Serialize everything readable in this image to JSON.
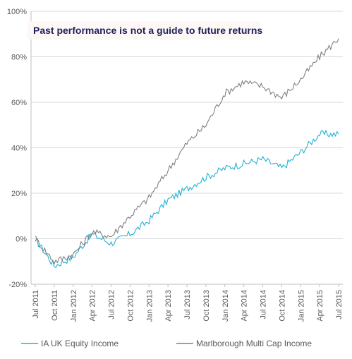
{
  "chart_data": {
    "type": "line",
    "banner": "Past performance is not a guide to future returns",
    "x": [
      "Jul 2011",
      "Oct 2011",
      "Jan 2012",
      "Apr 2012",
      "Jul 2012",
      "Oct 2012",
      "Jan 2013",
      "Apr 2013",
      "Jul 2013",
      "Oct 2013",
      "Jan 2014",
      "Apr 2014",
      "Jul 2014",
      "Oct 2014",
      "Jan 2015",
      "Apr 2015",
      "Jul 2015"
    ],
    "y_ticks": [
      "100%",
      "80%",
      "60%",
      "40%",
      "20%",
      "0%",
      "-20%"
    ],
    "ylim": [
      -20,
      100
    ],
    "y_unit": "%",
    "grid": true,
    "legend_position": "bottom",
    "series": [
      {
        "name": "IA UK Equity Income",
        "color": "#1fb1d6",
        "values": [
          0,
          -12,
          -8,
          2,
          -2,
          2,
          8,
          17,
          22,
          27,
          31,
          33,
          35,
          31,
          38,
          46,
          46
        ]
      },
      {
        "name": "Marlborough Multi Cap Income",
        "color": "#7f7f7f",
        "values": [
          0,
          -10,
          -7,
          3,
          1,
          10,
          18,
          30,
          42,
          50,
          64,
          69,
          67,
          62,
          70,
          80,
          88
        ]
      }
    ]
  }
}
